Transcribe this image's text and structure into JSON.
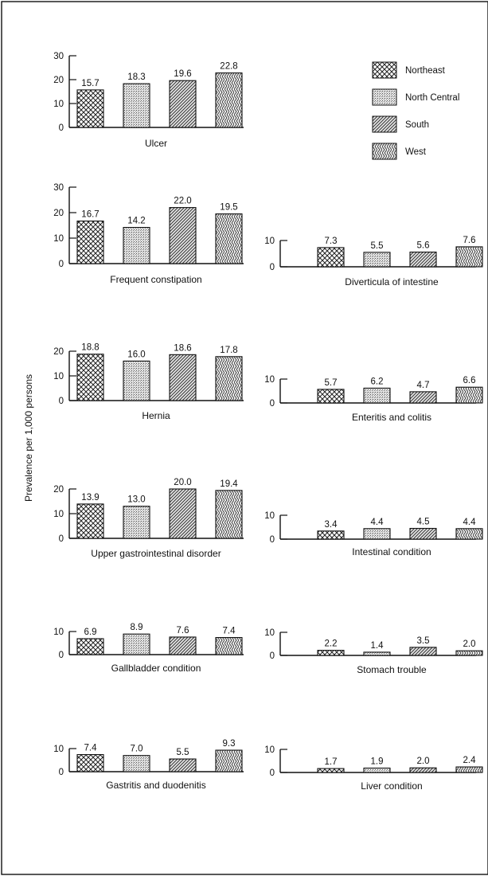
{
  "y_axis_label": "Prevalence per 1,000 persons",
  "legend": [
    {
      "label": "Northeast",
      "pattern": "crosshatch"
    },
    {
      "label": "North Central",
      "pattern": "dots"
    },
    {
      "label": "South",
      "pattern": "diagonal"
    },
    {
      "label": "West",
      "pattern": "zigzag"
    }
  ],
  "chart_data": [
    {
      "type": "bar",
      "title": "Ulcer",
      "categories": [
        "Northeast",
        "North Central",
        "South",
        "West"
      ],
      "values": [
        15.7,
        18.3,
        19.6,
        22.8
      ],
      "labels": [
        "15.7",
        "18.3",
        "19.6",
        "22.8"
      ],
      "ylim": [
        0,
        30
      ],
      "yticks": [
        "0",
        "10",
        "20",
        "30"
      ]
    },
    {
      "type": "bar",
      "title": "Frequent constipation",
      "categories": [
        "Northeast",
        "North Central",
        "South",
        "West"
      ],
      "values": [
        16.7,
        14.2,
        22.0,
        19.5
      ],
      "labels": [
        "16.7",
        "14.2",
        "22.0",
        "19.5"
      ],
      "ylim": [
        0,
        30
      ],
      "yticks": [
        "0",
        "10",
        "20",
        "30"
      ]
    },
    {
      "type": "bar",
      "title": "Diverticula of intestine",
      "categories": [
        "Northeast",
        "North Central",
        "South",
        "West"
      ],
      "values": [
        7.3,
        5.5,
        5.6,
        7.6
      ],
      "labels": [
        "7.3",
        "5.5",
        "5.6",
        "7.6"
      ],
      "ylim": [
        0,
        10
      ],
      "yticks": [
        "0",
        "10"
      ]
    },
    {
      "type": "bar",
      "title": "Hernia",
      "categories": [
        "Northeast",
        "North Central",
        "South",
        "West"
      ],
      "values": [
        18.8,
        16.0,
        18.6,
        17.8
      ],
      "labels": [
        "18.8",
        "16.0",
        "18.6",
        "17.8"
      ],
      "ylim": [
        0,
        20
      ],
      "yticks": [
        "0",
        "10",
        "20"
      ]
    },
    {
      "type": "bar",
      "title": "Enteritis and colitis",
      "categories": [
        "Northeast",
        "North Central",
        "South",
        "West"
      ],
      "values": [
        5.7,
        6.2,
        4.7,
        6.6
      ],
      "labels": [
        "5.7",
        "6.2",
        "4.7",
        "6.6"
      ],
      "ylim": [
        0,
        10
      ],
      "yticks": [
        "0",
        "10"
      ]
    },
    {
      "type": "bar",
      "title": "Upper gastrointestinal disorder",
      "categories": [
        "Northeast",
        "North Central",
        "South",
        "West"
      ],
      "values": [
        13.9,
        13.0,
        20.0,
        19.4
      ],
      "labels": [
        "13.9",
        "13.0",
        "20.0",
        "19.4"
      ],
      "ylim": [
        0,
        20
      ],
      "yticks": [
        "0",
        "10",
        "20"
      ]
    },
    {
      "type": "bar",
      "title": "Intestinal condition",
      "categories": [
        "Northeast",
        "North Central",
        "South",
        "West"
      ],
      "values": [
        3.4,
        4.4,
        4.5,
        4.4
      ],
      "labels": [
        "3.4",
        "4.4",
        "4.5",
        "4.4"
      ],
      "ylim": [
        0,
        10
      ],
      "yticks": [
        "0",
        "10"
      ]
    },
    {
      "type": "bar",
      "title": "Gallbladder condition",
      "categories": [
        "Northeast",
        "North Central",
        "South",
        "West"
      ],
      "values": [
        6.9,
        8.9,
        7.6,
        7.4
      ],
      "labels": [
        "6.9",
        "8.9",
        "7.6",
        "7.4"
      ],
      "ylim": [
        0,
        10
      ],
      "yticks": [
        "0",
        "10"
      ]
    },
    {
      "type": "bar",
      "title": "Stomach trouble",
      "categories": [
        "Northeast",
        "North Central",
        "South",
        "West"
      ],
      "values": [
        2.2,
        1.4,
        3.5,
        2.0
      ],
      "labels": [
        "2.2",
        "1.4",
        "3.5",
        "2.0"
      ],
      "ylim": [
        0,
        10
      ],
      "yticks": [
        "0",
        "10"
      ]
    },
    {
      "type": "bar",
      "title": "Gastritis and duodenitis",
      "categories": [
        "Northeast",
        "North Central",
        "South",
        "West"
      ],
      "values": [
        7.4,
        7.0,
        5.5,
        9.3
      ],
      "labels": [
        "7.4",
        "7.0",
        "5.5",
        "9.3"
      ],
      "ylim": [
        0,
        10
      ],
      "yticks": [
        "0",
        "10"
      ]
    },
    {
      "type": "bar",
      "title": "Liver condition",
      "categories": [
        "Northeast",
        "North Central",
        "South",
        "West"
      ],
      "values": [
        1.7,
        1.9,
        2.0,
        2.4
      ],
      "labels": [
        "1.7",
        "1.9",
        "2.0",
        "2.4"
      ],
      "ylim": [
        0,
        10
      ],
      "yticks": [
        "0",
        "10"
      ]
    }
  ]
}
